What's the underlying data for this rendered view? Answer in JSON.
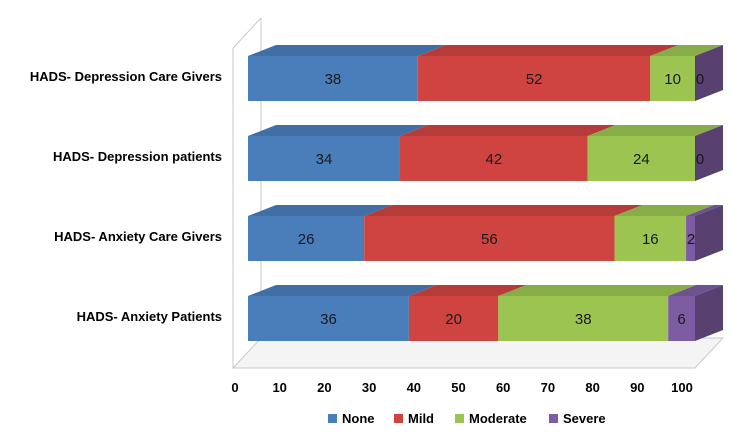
{
  "chart_data": {
    "type": "bar",
    "orientation": "horizontal",
    "stacked": true,
    "style_3d": true,
    "categories": [
      "HADS- Depression Care Givers",
      "HADS- Depression patients",
      "HADS- Anxiety Care Givers",
      "HADS- Anxiety Patients"
    ],
    "series": [
      {
        "name": "None",
        "color": "#4a7ebb",
        "values": [
          38,
          34,
          26,
          36
        ]
      },
      {
        "name": "Mild",
        "color": "#cf4441",
        "values": [
          52,
          42,
          56,
          20
        ]
      },
      {
        "name": "Moderate",
        "color": "#9bc451",
        "values": [
          10,
          24,
          16,
          38
        ]
      },
      {
        "name": "Severe",
        "color": "#7d5ca2",
        "values": [
          0,
          0,
          2,
          6
        ]
      }
    ],
    "xlim": [
      0,
      100
    ],
    "xticks": [
      0,
      10,
      20,
      30,
      40,
      50,
      60,
      70,
      80,
      90,
      100
    ],
    "grid": false,
    "legend_position": "bottom"
  }
}
